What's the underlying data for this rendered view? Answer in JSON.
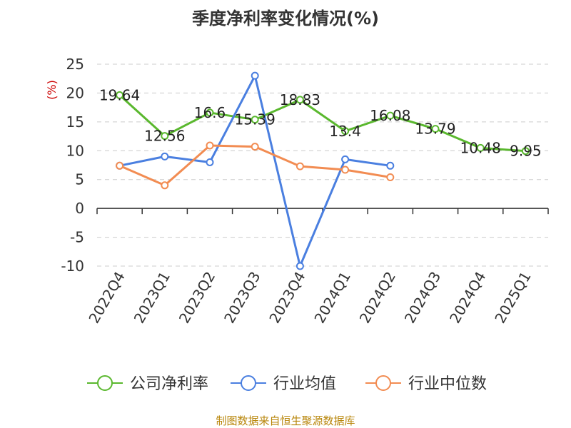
{
  "chart_data": {
    "type": "line",
    "title": "季度净利率变化情况(%)",
    "ylabel": "(%)",
    "xlabel": "",
    "ylim": [
      -10,
      25
    ],
    "yticks": [
      25,
      20,
      15,
      10,
      5,
      0,
      -5,
      -10
    ],
    "grid": true,
    "legend_position": "bottom",
    "categories": [
      "2022Q4",
      "2023Q1",
      "2023Q2",
      "2023Q3",
      "2023Q4",
      "2024Q1",
      "2024Q2",
      "2024Q3",
      "2024Q4",
      "2025Q1"
    ],
    "series": [
      {
        "name": "公司净利率",
        "color": "#5ab82e",
        "values": [
          19.64,
          12.56,
          16.6,
          15.39,
          18.83,
          13.4,
          16.08,
          13.79,
          10.48,
          9.95
        ],
        "labels": [
          "19.64",
          "12.56",
          "16.6",
          "15.39",
          "18.83",
          "13.4",
          "16.08",
          "13.79",
          "10.48",
          "9.95"
        ]
      },
      {
        "name": "行业均值",
        "color": "#4a7fe0",
        "values": [
          7.4,
          9.0,
          8.0,
          23.0,
          -10.0,
          8.5,
          7.4,
          null,
          null,
          null
        ]
      },
      {
        "name": "行业中位数",
        "color": "#f28c52",
        "values": [
          7.4,
          4.0,
          10.9,
          10.7,
          7.3,
          6.7,
          5.4,
          null,
          null,
          null
        ]
      }
    ]
  },
  "source": "制图数据来自恒生聚源数据库"
}
